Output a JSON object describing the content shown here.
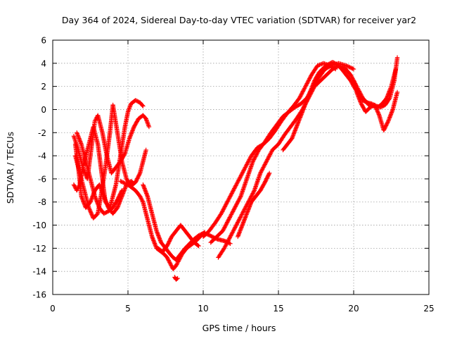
{
  "chart_data": {
    "type": "scatter",
    "title": "Day 364 of 2024, Sidereal Day-to-day VTEC variation (SDTVAR) for receiver yar2",
    "xlabel": "GPS time / hours",
    "ylabel": "SDTVAR / TECUs",
    "xlim": [
      0,
      25
    ],
    "ylim": [
      -16,
      6
    ],
    "xticks": [
      0,
      5,
      10,
      15,
      20,
      25
    ],
    "yticks": [
      -16,
      -14,
      -12,
      -10,
      -8,
      -6,
      -4,
      -2,
      0,
      2,
      4,
      6
    ],
    "grid": true,
    "legend": "none",
    "marker": "+",
    "color": "#ff0000",
    "series": [
      {
        "x": [
          1.4,
          1.7,
          2.0,
          2.3,
          2.6,
          2.8,
          3.0,
          3.3,
          3.6,
          3.9,
          4.2,
          4.5,
          4.8,
          5.1,
          5.4,
          5.7,
          6.0,
          6.2,
          6.4
        ],
        "y": [
          -2.3,
          -3.5,
          -5.0,
          -6.0,
          -3.0,
          -1.0,
          -0.5,
          -2.0,
          -4.0,
          -5.5,
          -5.0,
          -4.5,
          -3.8,
          -2.5,
          -1.5,
          -0.8,
          -0.5,
          -0.8,
          -1.5
        ]
      },
      {
        "x": [
          1.4,
          1.6,
          1.8,
          2.0,
          2.2,
          2.5,
          2.7,
          3.0,
          3.3,
          3.5,
          3.8,
          4.2,
          4.5,
          4.8,
          5.0,
          5.2,
          5.5,
          5.8,
          6.0
        ],
        "y": [
          -6.5,
          -7.0,
          -6.5,
          -5.0,
          -4.0,
          -2.5,
          -1.5,
          -3.0,
          -6.0,
          -8.0,
          -8.5,
          -6.5,
          -4.0,
          -1.5,
          -0.2,
          0.5,
          0.8,
          0.6,
          0.3
        ]
      },
      {
        "x": [
          1.5,
          1.8,
          2.1,
          2.4,
          2.7,
          3.0,
          3.2,
          3.5,
          3.8,
          4.0,
          4.3,
          4.6,
          4.9,
          5.2,
          5.5,
          5.8,
          6.0,
          6.2
        ],
        "y": [
          -4.0,
          -5.5,
          -7.0,
          -8.5,
          -9.4,
          -9.0,
          -7.5,
          -5.0,
          -2.0,
          0.4,
          -2.0,
          -4.5,
          -6.0,
          -6.6,
          -6.3,
          -5.5,
          -4.5,
          -3.5
        ]
      },
      {
        "x": [
          1.5,
          1.7,
          1.9,
          2.2,
          2.5,
          2.8,
          3.1,
          3.4,
          3.7,
          4.0,
          4.3,
          4.6,
          4.9,
          5.2,
          5.4
        ],
        "y": [
          -3.0,
          -5.0,
          -7.5,
          -8.5,
          -8.0,
          -7.0,
          -6.5,
          -7.5,
          -8.5,
          -9.0,
          -8.5,
          -7.5,
          -6.5,
          -6.2,
          -6.4
        ]
      },
      {
        "x": [
          1.6,
          1.9,
          2.2,
          2.5,
          2.8,
          3.1,
          3.4,
          3.7,
          4.0,
          4.3,
          4.6
        ],
        "y": [
          -2.0,
          -3.0,
          -4.5,
          -6.0,
          -7.5,
          -8.5,
          -9.0,
          -8.8,
          -8.5,
          -7.8,
          -7.0
        ]
      },
      {
        "x": [
          4.5,
          5.0,
          5.5,
          5.8,
          6.0,
          6.3,
          6.6,
          6.9,
          7.2,
          7.4,
          7.6,
          7.8,
          8.0,
          8.2,
          8.4,
          8.6,
          8.9,
          9.2,
          9.5,
          9.8,
          10.1
        ],
        "y": [
          -6.2,
          -6.5,
          -7.0,
          -7.5,
          -8.0,
          -9.5,
          -11.0,
          -12.0,
          -12.3,
          -12.5,
          -12.8,
          -13.3,
          -13.8,
          -13.5,
          -13.0,
          -12.5,
          -12.0,
          -11.7,
          -11.4,
          -11.0,
          -10.6
        ]
      },
      {
        "x": [
          6.0,
          6.3,
          6.6,
          6.9,
          7.2,
          7.5,
          7.8,
          8.0,
          8.2,
          8.5,
          8.8,
          9.1,
          9.4,
          9.7,
          10.0,
          10.3,
          10.6,
          10.9,
          11.2,
          11.5,
          11.8
        ],
        "y": [
          -6.5,
          -7.5,
          -9.0,
          -10.5,
          -11.5,
          -12.0,
          -12.5,
          -12.8,
          -13.0,
          -12.5,
          -12.0,
          -11.6,
          -11.2,
          -10.9,
          -10.7,
          -10.8,
          -11.0,
          -11.2,
          -11.3,
          -11.4,
          -11.6
        ]
      },
      {
        "x": [
          7.0,
          7.3,
          7.6,
          7.9,
          8.2,
          8.5,
          8.8,
          9.1,
          9.4,
          9.7
        ],
        "y": [
          -12.0,
          -12.3,
          -11.8,
          -11.0,
          -10.5,
          -10.0,
          -10.5,
          -11.0,
          -11.5,
          -11.8
        ]
      },
      {
        "x": [
          8.1,
          8.2,
          8.3
        ],
        "y": [
          -14.5,
          -14.7,
          -14.6
        ]
      },
      {
        "x": [
          10.0,
          10.4,
          10.8,
          11.2,
          11.6,
          12.0,
          12.4,
          12.8,
          13.2,
          13.6,
          14.0,
          14.4,
          14.8,
          15.2,
          15.6,
          16.0,
          16.4,
          16.8,
          17.2,
          17.6,
          18.0,
          18.4,
          18.8
        ],
        "y": [
          -11.0,
          -10.5,
          -9.8,
          -9.0,
          -8.0,
          -7.0,
          -6.0,
          -5.0,
          -4.0,
          -3.3,
          -3.0,
          -2.5,
          -1.8,
          -1.0,
          -0.3,
          0.3,
          1.0,
          2.0,
          3.0,
          3.8,
          4.0,
          3.8,
          3.5
        ]
      },
      {
        "x": [
          10.5,
          10.9,
          11.3,
          11.7,
          12.1,
          12.5,
          12.9,
          13.3,
          13.7,
          14.1,
          14.5,
          14.9,
          15.3,
          15.7,
          16.1,
          16.5,
          16.9,
          17.3,
          17.7,
          18.1,
          18.5,
          19.0,
          19.5,
          20.0
        ],
        "y": [
          -11.5,
          -11.0,
          -10.5,
          -9.5,
          -8.5,
          -7.5,
          -6.0,
          -4.5,
          -3.5,
          -2.8,
          -2.0,
          -1.3,
          -0.6,
          -0.2,
          0.2,
          0.5,
          1.0,
          2.0,
          2.8,
          3.5,
          3.8,
          4.0,
          3.8,
          3.5
        ]
      },
      {
        "x": [
          11.0,
          11.4,
          11.8,
          12.2,
          12.6,
          13.0,
          13.4,
          13.8,
          14.2,
          14.6,
          15.0,
          15.4,
          15.8,
          16.2,
          16.6,
          17.0,
          17.4,
          17.8,
          18.2,
          18.6,
          19.0,
          19.4,
          19.8,
          20.2,
          20.6,
          21.0
        ],
        "y": [
          -12.8,
          -12.0,
          -11.0,
          -10.0,
          -9.0,
          -8.0,
          -7.0,
          -5.5,
          -4.5,
          -3.5,
          -3.0,
          -2.2,
          -1.5,
          -0.8,
          0.0,
          1.0,
          2.0,
          2.5,
          3.0,
          3.5,
          3.8,
          3.6,
          3.0,
          2.0,
          1.0,
          0.4
        ]
      },
      {
        "x": [
          12.3,
          12.6,
          12.9,
          13.2,
          13.5,
          13.8,
          14.1,
          14.4
        ],
        "y": [
          -11.0,
          -10.0,
          -9.0,
          -8.0,
          -7.5,
          -7.0,
          -6.3,
          -5.5
        ]
      },
      {
        "x": [
          15.3,
          15.6,
          15.9,
          16.2,
          16.5,
          16.8,
          17.1,
          17.4,
          17.7,
          18.0,
          18.3,
          18.6,
          18.9,
          19.2,
          19.5,
          19.8,
          20.1,
          20.4,
          20.7,
          21.0,
          21.3,
          21.6,
          21.9,
          22.2,
          22.5,
          22.8
        ],
        "y": [
          -3.5,
          -3.0,
          -2.5,
          -1.5,
          -0.5,
          0.5,
          1.5,
          2.5,
          3.2,
          3.6,
          3.9,
          4.1,
          3.9,
          3.5,
          3.0,
          2.5,
          1.8,
          1.2,
          0.8,
          0.5,
          0.3,
          0.2,
          0.5,
          1.0,
          2.0,
          3.5
        ]
      },
      {
        "x": [
          20.0,
          20.3,
          20.6,
          20.9,
          21.2,
          21.5,
          21.8,
          22.1,
          22.4,
          22.7,
          22.9
        ],
        "y": [
          2.5,
          1.5,
          0.8,
          0.6,
          0.5,
          0.3,
          0.2,
          0.4,
          1.0,
          2.5,
          4.5
        ]
      },
      {
        "x": [
          20.2,
          20.5,
          20.8,
          21.1,
          21.4,
          21.7,
          22.0,
          22.3,
          22.6,
          22.9
        ],
        "y": [
          1.5,
          0.5,
          -0.2,
          0.2,
          0.4,
          -0.5,
          -1.8,
          -1.0,
          0.0,
          1.5
        ]
      }
    ]
  }
}
